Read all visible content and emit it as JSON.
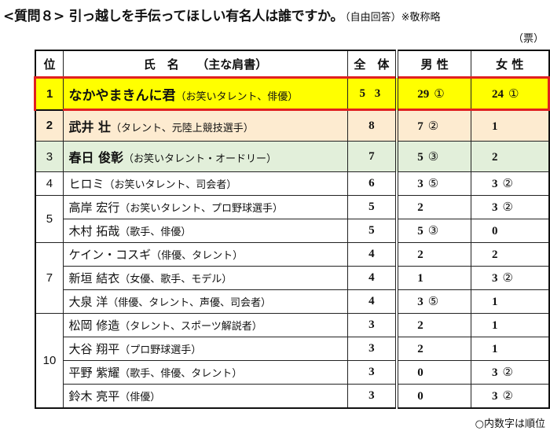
{
  "title": {
    "main": "<質問８>  引っ越しを手伝ってほしい有名人は誰ですか。",
    "sub": "（自由回答）※敬称略"
  },
  "unit": "（票）",
  "note": "○内数字は順位",
  "table": {
    "headers": {
      "rank": "位",
      "name": "氏　名　　（主な肩書）",
      "total": "全　体",
      "male": "男 性",
      "female": "女 性"
    },
    "rows": [
      {
        "rank": "1",
        "name": "なかやまきんに君",
        "role": "（お笑いタレント、俳優）",
        "total": "5 3",
        "male": "29",
        "male_rank": "①",
        "female": "24",
        "female_rank": "①"
      },
      {
        "rank": "2",
        "name": "武井 壮",
        "role": "（タレント、元陸上競技選手）",
        "total": "8",
        "male": "7",
        "male_rank": "②",
        "female": "1",
        "female_rank": ""
      },
      {
        "rank": "3",
        "name": "春日 俊彰",
        "role": "（お笑いタレント・オードリー）",
        "total": "7",
        "male": "5",
        "male_rank": "③",
        "female": "2",
        "female_rank": ""
      },
      {
        "rank": "4",
        "name": "ヒロミ",
        "role": "（お笑いタレント、司会者）",
        "total": "6",
        "male": "3",
        "male_rank": "⑤",
        "female": "3",
        "female_rank": "②"
      },
      {
        "rank": "5",
        "name": "高岸 宏行",
        "role": "（お笑いタレント、プロ野球選手）",
        "total": "5",
        "male": "2",
        "male_rank": "",
        "female": "3",
        "female_rank": "②"
      },
      {
        "rank": "",
        "name": "木村 拓哉",
        "role": "（歌手、俳優）",
        "total": "5",
        "male": "5",
        "male_rank": "③",
        "female": "0",
        "female_rank": ""
      },
      {
        "rank": "7",
        "name": "ケイン・コスギ",
        "role": "（俳優、タレント）",
        "total": "4",
        "male": "2",
        "male_rank": "",
        "female": "2",
        "female_rank": ""
      },
      {
        "rank": "",
        "name": "新垣 結衣",
        "role": "（女優、歌手、モデル）",
        "total": "4",
        "male": "1",
        "male_rank": "",
        "female": "3",
        "female_rank": "②"
      },
      {
        "rank": "",
        "name": "大泉 洋",
        "role": "（俳優、タレント、声優、司会者）",
        "total": "4",
        "male": "3",
        "male_rank": "⑤",
        "female": "1",
        "female_rank": ""
      },
      {
        "rank": "10",
        "name": "松岡 修造",
        "role": "（タレント、スポーツ解説者）",
        "total": "3",
        "male": "2",
        "male_rank": "",
        "female": "1",
        "female_rank": ""
      },
      {
        "rank": "",
        "name": "大谷 翔平",
        "role": "（プロ野球選手）",
        "total": "3",
        "male": "2",
        "male_rank": "",
        "female": "1",
        "female_rank": ""
      },
      {
        "rank": "",
        "name": "平野 紫耀",
        "role": "（歌手、俳優、タレント）",
        "total": "3",
        "male": "0",
        "male_rank": "",
        "female": "3",
        "female_rank": "②"
      },
      {
        "rank": "",
        "name": "鈴木 亮平",
        "role": "（俳優）",
        "total": "3",
        "male": "0",
        "male_rank": "",
        "female": "3",
        "female_rank": "②"
      }
    ]
  },
  "colors": {
    "rank1_bg": "#ffff00",
    "rank1_border": "#e02020",
    "rank2_bg": "#fdebd0",
    "rank3_bg": "#e2efda"
  }
}
